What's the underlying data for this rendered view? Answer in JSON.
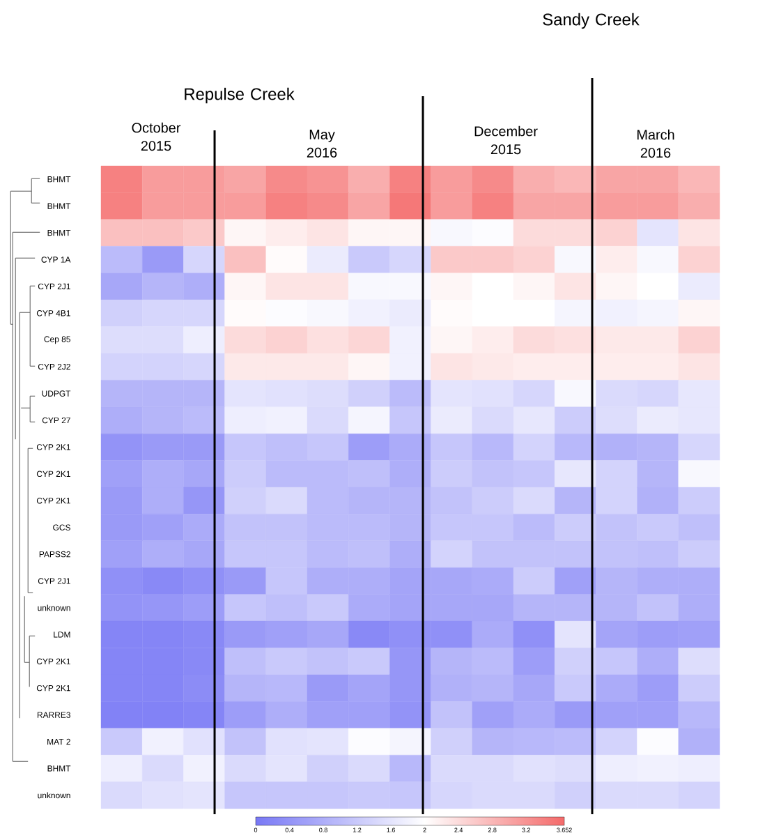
{
  "chart_data": {
    "type": "heatmap",
    "categories": [
      null,
      null,
      null,
      null,
      null,
      null,
      null,
      null,
      null,
      null,
      null,
      null,
      null,
      null,
      null
    ],
    "y_categories": [
      "BHMT",
      "BHMT",
      "BHMT",
      "CYP 1A",
      "CYP 2J1",
      "CYP 4B1",
      "Cep 85",
      "CYP 2J2",
      "UDPGT",
      "CYP 27",
      "CYP 2K1",
      "CYP 2K1",
      "CYP 2K1",
      "GCS",
      "PAPSS2",
      "CYP 2J1",
      "unknown",
      "LDM",
      "CYP 2K1",
      "CYP 2K1",
      "RARRE3",
      "MAT 2",
      "BHMT",
      "unknown"
    ],
    "cells": [
      [
        3.4,
        3.1,
        3.1,
        3.0,
        3.3,
        3.2,
        2.9,
        3.4,
        3.1,
        3.3,
        2.9,
        2.8,
        3.0,
        3.0,
        2.8
      ],
      [
        3.4,
        3.1,
        3.1,
        3.1,
        3.4,
        3.3,
        3.0,
        3.5,
        3.1,
        3.4,
        3.0,
        3.0,
        3.1,
        3.1,
        2.9
      ],
      [
        2.7,
        2.7,
        2.6,
        2.1,
        2.2,
        2.3,
        2.1,
        2.1,
        1.9,
        1.95,
        2.4,
        2.4,
        2.5,
        1.6,
        2.3
      ],
      [
        1.0,
        0.5,
        1.4,
        2.7,
        2.05,
        1.7,
        1.2,
        1.4,
        2.6,
        2.6,
        2.5,
        1.9,
        2.2,
        1.9,
        2.5
      ],
      [
        0.7,
        0.9,
        0.8,
        2.1,
        2.3,
        2.3,
        1.9,
        1.9,
        2.1,
        2.0,
        2.1,
        2.3,
        2.1,
        2.0,
        1.7
      ],
      [
        1.3,
        1.4,
        1.4,
        2.05,
        1.95,
        1.9,
        1.8,
        1.7,
        2.05,
        2.0,
        2.0,
        1.85,
        1.8,
        1.85,
        2.1
      ],
      [
        1.5,
        1.5,
        1.75,
        2.4,
        2.5,
        2.35,
        2.45,
        1.8,
        2.1,
        2.2,
        2.4,
        2.35,
        2.25,
        2.25,
        2.5
      ],
      [
        1.35,
        1.35,
        1.4,
        2.25,
        2.25,
        2.25,
        2.1,
        1.8,
        2.3,
        2.25,
        2.2,
        2.2,
        2.2,
        2.2,
        2.3
      ],
      [
        0.9,
        0.9,
        0.9,
        1.6,
        1.55,
        1.5,
        1.3,
        1.0,
        1.6,
        1.55,
        1.4,
        1.9,
        1.45,
        1.4,
        1.65
      ],
      [
        0.8,
        0.9,
        1.0,
        1.75,
        1.8,
        1.45,
        1.85,
        1.15,
        1.7,
        1.45,
        1.65,
        1.25,
        1.5,
        1.7,
        1.65
      ],
      [
        0.4,
        0.5,
        0.5,
        1.15,
        1.05,
        1.15,
        0.55,
        0.75,
        1.15,
        0.95,
        1.35,
        0.95,
        0.85,
        0.9,
        1.4
      ],
      [
        0.6,
        0.8,
        0.7,
        1.25,
        1.0,
        1.0,
        1.05,
        0.8,
        1.25,
        1.1,
        1.15,
        1.65,
        1.35,
        0.9,
        1.9
      ],
      [
        0.5,
        0.8,
        0.45,
        1.3,
        1.45,
        1.0,
        0.9,
        0.9,
        1.1,
        1.25,
        1.45,
        0.9,
        1.35,
        0.85,
        1.25
      ],
      [
        0.5,
        0.6,
        0.75,
        1.1,
        1.1,
        1.0,
        1.0,
        0.9,
        1.15,
        1.15,
        1.0,
        1.25,
        1.1,
        1.2,
        1.05
      ],
      [
        0.6,
        0.8,
        0.7,
        1.15,
        1.15,
        1.0,
        1.05,
        0.8,
        1.35,
        1.1,
        1.1,
        1.1,
        1.1,
        1.05,
        1.25
      ],
      [
        0.35,
        0.25,
        0.35,
        0.5,
        1.15,
        0.8,
        0.8,
        0.65,
        0.7,
        0.75,
        1.25,
        0.6,
        0.9,
        0.8,
        0.8
      ],
      [
        0.4,
        0.45,
        0.55,
        1.15,
        1.05,
        1.2,
        0.75,
        0.65,
        0.7,
        0.7,
        0.9,
        0.9,
        0.9,
        1.1,
        0.8
      ],
      [
        0.2,
        0.2,
        0.25,
        0.5,
        0.6,
        0.7,
        0.25,
        0.35,
        0.35,
        0.75,
        0.35,
        1.6,
        0.65,
        0.55,
        0.6
      ],
      [
        0.2,
        0.2,
        0.25,
        1.05,
        1.2,
        1.1,
        1.2,
        0.45,
        0.9,
        1.0,
        0.55,
        1.3,
        1.15,
        0.8,
        1.5
      ],
      [
        0.2,
        0.2,
        0.3,
        0.9,
        0.95,
        0.5,
        0.65,
        0.45,
        0.85,
        0.9,
        0.7,
        1.2,
        0.75,
        0.55,
        1.25
      ],
      [
        0.15,
        0.15,
        0.2,
        0.55,
        0.8,
        0.6,
        0.6,
        0.4,
        1.1,
        0.6,
        0.75,
        0.5,
        0.6,
        0.6,
        0.95
      ],
      [
        1.2,
        1.8,
        1.55,
        1.1,
        1.55,
        1.6,
        1.95,
        1.85,
        1.3,
        0.9,
        0.95,
        1.0,
        1.35,
        1.95,
        0.85
      ],
      [
        1.75,
        1.45,
        1.8,
        1.45,
        1.6,
        1.3,
        1.45,
        0.95,
        1.45,
        1.45,
        1.55,
        1.5,
        1.75,
        1.8,
        1.75
      ],
      [
        1.45,
        1.55,
        1.6,
        1.15,
        1.15,
        1.15,
        1.2,
        1.15,
        1.4,
        1.45,
        1.45,
        1.3,
        1.45,
        1.45,
        1.35
      ]
    ],
    "clim": [
      0,
      3.652
    ],
    "cticks": [
      0,
      0.4,
      0.8,
      1.2,
      1.6,
      2,
      2.4,
      2.8,
      3.2,
      3.652
    ],
    "annotations": [
      "Sandy Creek",
      "Repulse Creek",
      "October 2015",
      "May 2016",
      "December 2015",
      "March 2016"
    ]
  }
}
